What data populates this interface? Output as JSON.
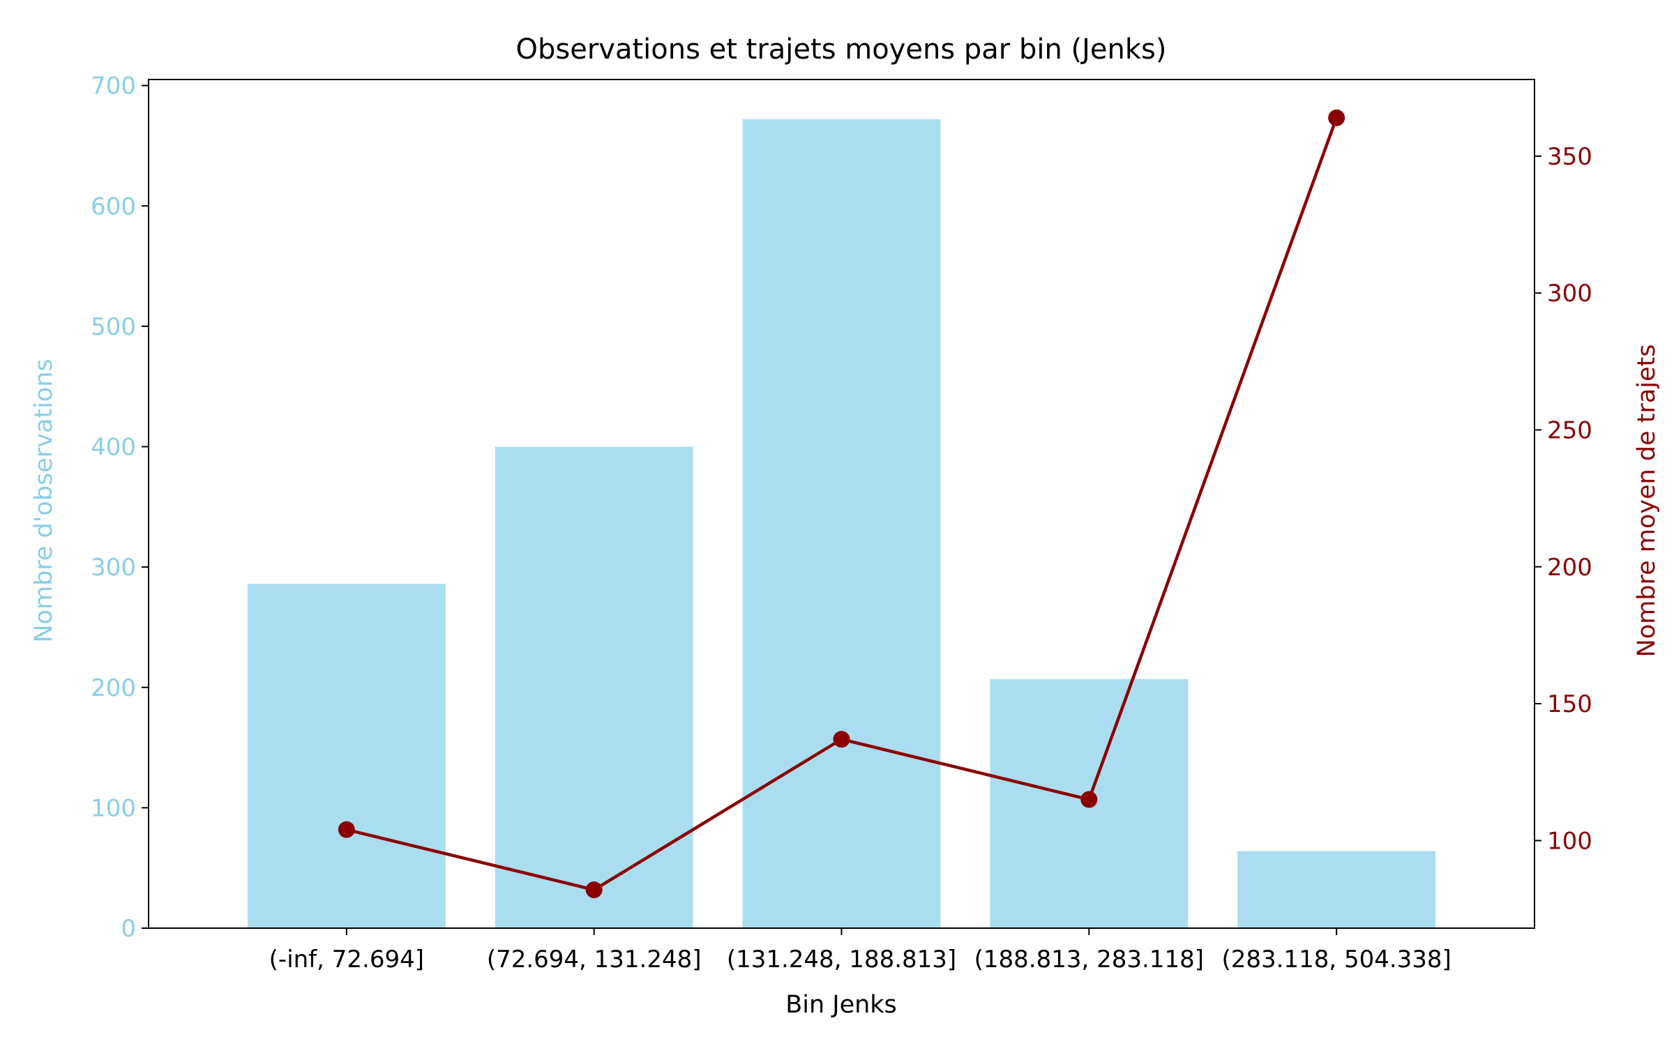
{
  "chart_data": {
    "type": "bar",
    "title": "Observations et trajets moyens par bin (Jenks)",
    "xlabel": "Bin Jenks",
    "ylabel": "Nombre d'observations",
    "y2label": "Nombre moyen de trajets",
    "categories": [
      "(-inf, 72.694]",
      "(72.694, 131.248]",
      "(131.248, 188.813]",
      "(188.813, 283.118]",
      "(283.118, 504.338]"
    ],
    "bar_series": {
      "name": "Nombre d'observations",
      "values": [
        286,
        400,
        672,
        207,
        64
      ],
      "color": "#87ceeb"
    },
    "line_series": {
      "name": "Nombre moyen de trajets",
      "values": [
        104,
        82,
        137,
        115,
        364
      ],
      "color": "#8b0000"
    },
    "ylim": [
      0,
      705
    ],
    "y2lim": [
      68,
      378
    ],
    "yticks": [
      0,
      100,
      200,
      300,
      400,
      500,
      600,
      700
    ],
    "y2ticks": [
      100,
      150,
      200,
      250,
      300,
      350
    ],
    "left_axis_color": "#87ceeb",
    "right_axis_color": "#8b0000",
    "grid": false,
    "legend": "none"
  }
}
